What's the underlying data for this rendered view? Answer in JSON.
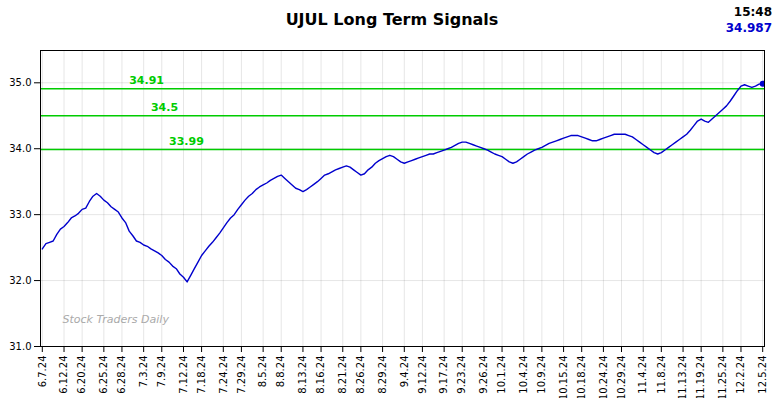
{
  "chart_data": {
    "type": "line",
    "title": "UJUL Long Term Signals",
    "categories": [
      "6.7.24",
      null,
      null,
      null,
      null,
      null,
      "6.12.24",
      null,
      null,
      null,
      null,
      "6.20.24",
      null,
      null,
      null,
      null,
      null,
      "6.25.24",
      null,
      null,
      null,
      null,
      "6.28.24",
      null,
      null,
      null,
      null,
      null,
      "7.3.24",
      null,
      null,
      null,
      null,
      "7.9.24",
      null,
      null,
      null,
      null,
      null,
      "7.12.24",
      null,
      null,
      null,
      null,
      "7.18.24",
      null,
      null,
      null,
      null,
      null,
      "7.24.24",
      null,
      null,
      null,
      null,
      "7.29.24",
      null,
      null,
      null,
      null,
      null,
      "8.5.24",
      null,
      null,
      null,
      null,
      "8.8.24",
      null,
      null,
      null,
      null,
      null,
      "8.13.24",
      null,
      null,
      null,
      null,
      "8.16.24",
      null,
      null,
      null,
      null,
      null,
      "8.21.24",
      null,
      null,
      null,
      null,
      "8.26.24",
      null,
      null,
      null,
      null,
      null,
      "8.29.24",
      null,
      null,
      null,
      null,
      null,
      "9.4.24",
      null,
      null,
      null,
      null,
      "9.12.24",
      null,
      null,
      null,
      null,
      null,
      "9.17.24",
      null,
      null,
      null,
      null,
      "9.23.24",
      null,
      null,
      null,
      null,
      null,
      "9.26.24",
      null,
      null,
      null,
      null,
      "10.1.24",
      null,
      null,
      null,
      null,
      null,
      "10.4.24",
      null,
      null,
      null,
      null,
      "10.9.24",
      null,
      null,
      null,
      null,
      null,
      "10.15.24",
      null,
      null,
      null,
      null,
      "10.18.24",
      null,
      null,
      null,
      null,
      null,
      "10.24.24",
      null,
      null,
      null,
      null,
      "10.29.24",
      null,
      null,
      null,
      null,
      null,
      "11.4.24",
      null,
      null,
      null,
      null,
      "11.8.24",
      null,
      null,
      null,
      null,
      null,
      "11.13.24",
      null,
      null,
      null,
      null,
      "11.19.24",
      null,
      null,
      null,
      null,
      null,
      "11.25.24",
      null,
      null,
      null,
      null,
      "12.2.24",
      null,
      null,
      null,
      null,
      null,
      "12.5.24"
    ],
    "values": [
      32.48,
      32.56,
      32.58,
      32.6,
      32.7,
      32.78,
      32.82,
      32.88,
      32.95,
      32.98,
      33.02,
      33.08,
      33.1,
      33.2,
      33.28,
      33.32,
      33.28,
      33.22,
      33.18,
      33.12,
      33.08,
      33.04,
      32.95,
      32.88,
      32.75,
      32.68,
      32.6,
      32.58,
      32.54,
      32.52,
      32.48,
      32.45,
      32.42,
      32.38,
      32.32,
      32.28,
      32.22,
      32.18,
      32.1,
      32.05,
      31.98,
      32.08,
      32.18,
      32.28,
      32.38,
      32.45,
      32.52,
      32.58,
      32.65,
      32.72,
      32.8,
      32.88,
      32.95,
      33.0,
      33.08,
      33.15,
      33.22,
      33.28,
      33.32,
      33.38,
      33.42,
      33.45,
      33.48,
      33.52,
      33.55,
      33.58,
      33.6,
      33.55,
      33.5,
      33.45,
      33.4,
      33.38,
      33.35,
      33.38,
      33.42,
      33.46,
      33.5,
      33.55,
      33.6,
      33.62,
      33.65,
      33.68,
      33.7,
      33.72,
      33.74,
      33.72,
      33.68,
      33.64,
      33.6,
      33.62,
      33.68,
      33.72,
      33.78,
      33.82,
      33.85,
      33.88,
      33.9,
      33.88,
      33.84,
      33.8,
      33.78,
      33.8,
      33.82,
      33.84,
      33.86,
      33.88,
      33.9,
      33.92,
      33.92,
      33.94,
      33.96,
      33.98,
      34.0,
      34.02,
      34.05,
      34.08,
      34.1,
      34.1,
      34.08,
      34.06,
      34.04,
      34.02,
      34.0,
      33.98,
      33.95,
      33.92,
      33.9,
      33.88,
      33.84,
      33.8,
      33.78,
      33.8,
      33.84,
      33.88,
      33.92,
      33.95,
      33.98,
      34.0,
      34.02,
      34.05,
      34.08,
      34.1,
      34.12,
      34.14,
      34.16,
      34.18,
      34.2,
      34.2,
      34.2,
      34.18,
      34.16,
      34.14,
      34.12,
      34.12,
      34.14,
      34.16,
      34.18,
      34.2,
      34.22,
      34.22,
      34.22,
      34.22,
      34.2,
      34.18,
      34.14,
      34.1,
      34.06,
      34.02,
      33.98,
      33.94,
      33.92,
      33.94,
      33.98,
      34.02,
      34.06,
      34.1,
      34.14,
      34.18,
      34.22,
      34.28,
      34.35,
      34.42,
      34.45,
      34.42,
      34.4,
      34.45,
      34.5,
      34.55,
      34.6,
      34.65,
      34.72,
      34.8,
      34.88,
      34.95,
      34.97,
      34.95,
      34.93,
      34.95,
      34.98,
      34.987
    ],
    "color": "#0000cd",
    "ylim": [
      31.0,
      35.49
    ],
    "yticks": [
      31,
      32,
      33,
      34,
      35
    ],
    "grid": true,
    "hlines": [
      {
        "value": 33.99,
        "label": "33.99",
        "color": "#00cc00"
      },
      {
        "value": 34.5,
        "label": "34.5",
        "color": "#00cc00"
      },
      {
        "value": 34.91,
        "label": "34.91",
        "color": "#00cc00"
      }
    ],
    "last_point": {
      "label": "15:48",
      "value": 34.987,
      "color": "#0000cd"
    },
    "watermark": "Stock Traders Daily"
  }
}
